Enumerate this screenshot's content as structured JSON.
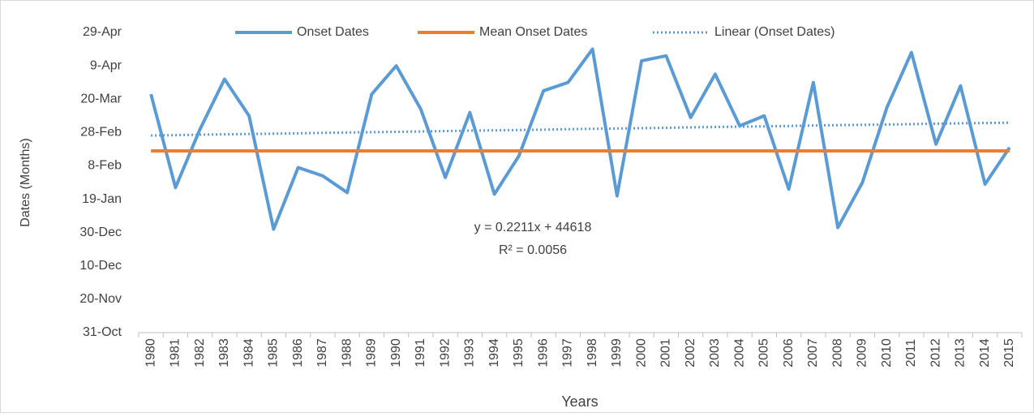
{
  "chart_data": {
    "type": "line",
    "x_label": "Years",
    "y_label": "Dates (Months)",
    "annotations": [
      "y = 0.2211x + 44618",
      "R² = 0.0056"
    ],
    "categories": [
      "1980",
      "1981",
      "1982",
      "1983",
      "1984",
      "1985",
      "1986",
      "1987",
      "1988",
      "1989",
      "1990",
      "1991",
      "1992",
      "1993",
      "1994",
      "1995",
      "1996",
      "1997",
      "1998",
      "1999",
      "2000",
      "2001",
      "2002",
      "2003",
      "2004",
      "2005",
      "2006",
      "2007",
      "2008",
      "2009",
      "2010",
      "2011",
      "2012",
      "2013",
      "2014",
      "2015"
    ],
    "series": [
      {
        "name": "Onset Dates",
        "color": "#5b9bd5",
        "style": "solid",
        "values": [
          44643,
          44587,
          44622,
          44652,
          44630,
          44562,
          44599,
          44594,
          44584,
          44643,
          44660,
          44634,
          44593,
          44632,
          44583,
          44606,
          44645,
          44650,
          44670,
          44582,
          44663,
          44666,
          44629,
          44655,
          44624,
          44630,
          44586,
          44650,
          44563,
          44590,
          44635,
          44668,
          44613,
          44648,
          44589,
          44611
        ]
      },
      {
        "name": "Mean Onset Dates",
        "color": "#ed7d31",
        "style": "solid",
        "values": [
          44609,
          44609,
          44609,
          44609,
          44609,
          44609,
          44609,
          44609,
          44609,
          44609,
          44609,
          44609,
          44609,
          44609,
          44609,
          44609,
          44609,
          44609,
          44609,
          44609,
          44609,
          44609,
          44609,
          44609,
          44609,
          44609,
          44609,
          44609,
          44609,
          44609,
          44609,
          44609,
          44609,
          44609,
          44609,
          44609
        ]
      },
      {
        "name": "Linear (Onset Dates)",
        "color": "#5b9bd5",
        "style": "dotted",
        "values": [
          44618.2,
          44618.4,
          44618.7,
          44618.9,
          44619.1,
          44619.3,
          44619.5,
          44619.8,
          44620.0,
          44620.2,
          44620.4,
          44620.6,
          44620.9,
          44621.1,
          44621.3,
          44621.5,
          44621.7,
          44622.0,
          44622.2,
          44622.4,
          44622.6,
          44622.8,
          44623.1,
          44623.3,
          44623.5,
          44623.7,
          44623.9,
          44624.2,
          44624.4,
          44624.6,
          44624.8,
          44625.0,
          44625.3,
          44625.5,
          44625.7,
          44625.9
        ]
      }
    ],
    "ylim": [
      44500,
      44680
    ],
    "yticks": [
      {
        "value": 44500,
        "label": "31-Oct"
      },
      {
        "value": 44520,
        "label": "20-Nov"
      },
      {
        "value": 44540,
        "label": "10-Dec"
      },
      {
        "value": 44560,
        "label": "30-Dec"
      },
      {
        "value": 44580,
        "label": "19-Jan"
      },
      {
        "value": 44600,
        "label": "8-Feb"
      },
      {
        "value": 44620,
        "label": "28-Feb"
      },
      {
        "value": 44640,
        "label": "20-Mar"
      },
      {
        "value": 44660,
        "label": "9-Apr"
      },
      {
        "value": 44680,
        "label": "29-Apr"
      }
    ],
    "grid": false,
    "legend": "top"
  }
}
